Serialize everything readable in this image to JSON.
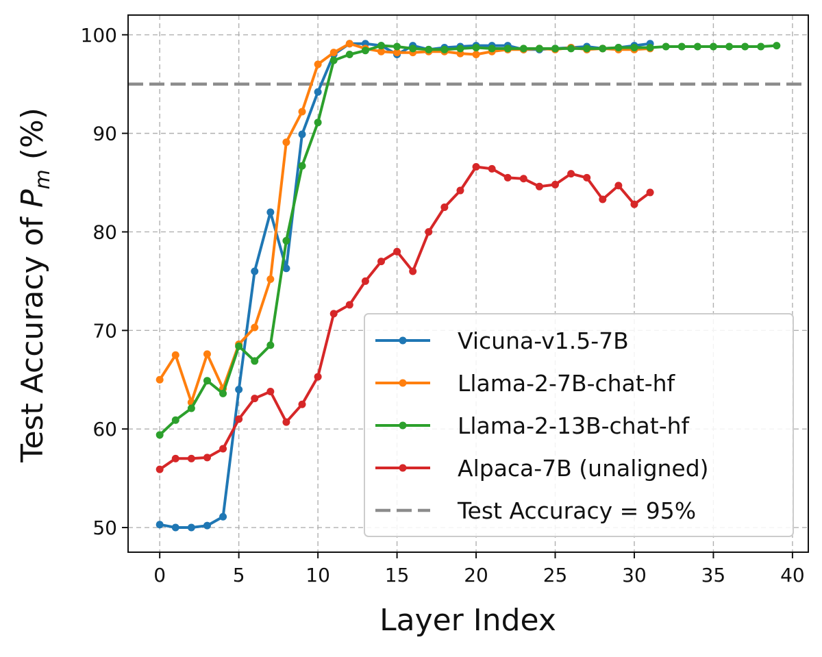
{
  "chart_data": {
    "type": "line",
    "xlabel": "Layer Index",
    "ylabel_parts": [
      "Test Accuracy of ",
      "P",
      "m",
      " (%)"
    ],
    "xlim": [
      -2,
      41
    ],
    "ylim": [
      47.5,
      102
    ],
    "xticks": [
      0,
      5,
      10,
      15,
      20,
      25,
      30,
      35,
      40
    ],
    "yticks": [
      50,
      60,
      70,
      80,
      90,
      100
    ],
    "grid": true,
    "legend_position": "lower-right",
    "reference_line": {
      "name": "Test Accuracy = 95%",
      "y": 95,
      "color": "#8c8c8c"
    },
    "series": [
      {
        "name": "Vicuna-v1.5-7B",
        "color": "#1f77b4",
        "x": [
          0,
          1,
          2,
          3,
          4,
          5,
          6,
          7,
          8,
          9,
          10,
          11,
          12,
          13,
          14,
          15,
          16,
          17,
          18,
          19,
          20,
          21,
          22,
          23,
          24,
          25,
          26,
          27,
          28,
          29,
          30,
          31
        ],
        "y": [
          50.3,
          50.0,
          50.0,
          50.2,
          51.1,
          64.0,
          76.0,
          82.0,
          76.3,
          89.9,
          94.2,
          98.0,
          99.1,
          99.1,
          98.9,
          98.0,
          98.9,
          98.5,
          98.7,
          98.8,
          98.9,
          98.9,
          98.9,
          98.5,
          98.5,
          98.6,
          98.7,
          98.8,
          98.6,
          98.7,
          98.9,
          99.1
        ]
      },
      {
        "name": "Llama-2-7B-chat-hf",
        "color": "#ff7f0e",
        "x": [
          0,
          1,
          2,
          3,
          4,
          5,
          6,
          7,
          8,
          9,
          10,
          11,
          12,
          13,
          14,
          15,
          16,
          17,
          18,
          19,
          20,
          21,
          22,
          23,
          24,
          25,
          26,
          27,
          28,
          29,
          30,
          31
        ],
        "y": [
          65.0,
          67.5,
          62.7,
          67.6,
          64.1,
          68.6,
          70.3,
          75.2,
          89.1,
          92.2,
          97.0,
          98.2,
          99.1,
          98.6,
          98.3,
          98.2,
          98.2,
          98.3,
          98.3,
          98.1,
          98.0,
          98.3,
          98.5,
          98.5,
          98.6,
          98.5,
          98.7,
          98.5,
          98.6,
          98.5,
          98.5,
          98.6
        ]
      },
      {
        "name": "Llama-2-13B-chat-hf",
        "color": "#2ca02c",
        "x": [
          0,
          1,
          2,
          3,
          4,
          5,
          6,
          7,
          8,
          9,
          10,
          11,
          12,
          13,
          14,
          15,
          16,
          17,
          18,
          19,
          20,
          21,
          22,
          23,
          24,
          25,
          26,
          27,
          28,
          29,
          30,
          31,
          32,
          33,
          34,
          35,
          36,
          37,
          38,
          39
        ],
        "y": [
          59.4,
          60.9,
          62.1,
          64.9,
          63.6,
          68.4,
          66.9,
          68.5,
          79.1,
          86.7,
          91.1,
          97.4,
          98.0,
          98.4,
          98.9,
          98.8,
          98.6,
          98.5,
          98.5,
          98.6,
          98.7,
          98.6,
          98.6,
          98.6,
          98.6,
          98.6,
          98.6,
          98.6,
          98.6,
          98.7,
          98.7,
          98.7,
          98.8,
          98.8,
          98.8,
          98.8,
          98.8,
          98.8,
          98.8,
          98.9
        ]
      },
      {
        "name": "Alpaca-7B (unaligned)",
        "color": "#d62728",
        "x": [
          0,
          1,
          2,
          3,
          4,
          5,
          6,
          7,
          8,
          9,
          10,
          11,
          12,
          13,
          14,
          15,
          16,
          17,
          18,
          19,
          20,
          21,
          22,
          23,
          24,
          25,
          26,
          27,
          28,
          29,
          30,
          31
        ],
        "y": [
          55.9,
          57.0,
          57.0,
          57.1,
          58.0,
          61.0,
          63.1,
          63.8,
          60.7,
          62.5,
          65.3,
          71.7,
          72.6,
          75.0,
          77.0,
          78.0,
          76.0,
          80.0,
          82.5,
          84.2,
          86.6,
          86.4,
          85.5,
          85.4,
          84.6,
          84.8,
          85.9,
          85.5,
          83.3,
          84.7,
          82.8,
          84.0
        ]
      }
    ]
  }
}
